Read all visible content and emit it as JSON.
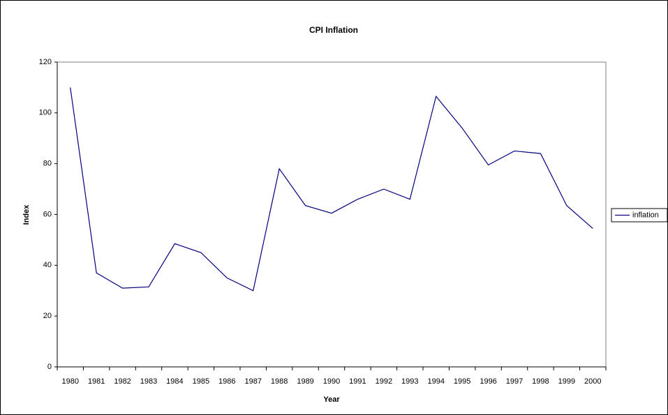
{
  "chart_data": {
    "type": "line",
    "title": "CPI Inflation",
    "x_label": "Year",
    "y_label": "Index",
    "categories": [
      "1980",
      "1981",
      "1982",
      "1983",
      "1984",
      "1985",
      "1986",
      "1987",
      "1988",
      "1989",
      "1990",
      "1991",
      "1992",
      "1993",
      "1994",
      "1995",
      "1996",
      "1997",
      "1998",
      "1999",
      "2000"
    ],
    "series": [
      {
        "name": "inflation",
        "color": "#000080",
        "values": [
          110,
          37,
          31,
          31.5,
          48.5,
          45,
          35,
          30,
          78,
          63.5,
          60.5,
          66,
          70,
          66,
          106.5,
          94,
          79.5,
          85,
          84,
          63.5,
          54.5
        ]
      }
    ],
    "ylim": [
      0,
      120
    ],
    "yticks": [
      0,
      20,
      40,
      60,
      80,
      100,
      120
    ],
    "grid": false,
    "legend": "right"
  }
}
